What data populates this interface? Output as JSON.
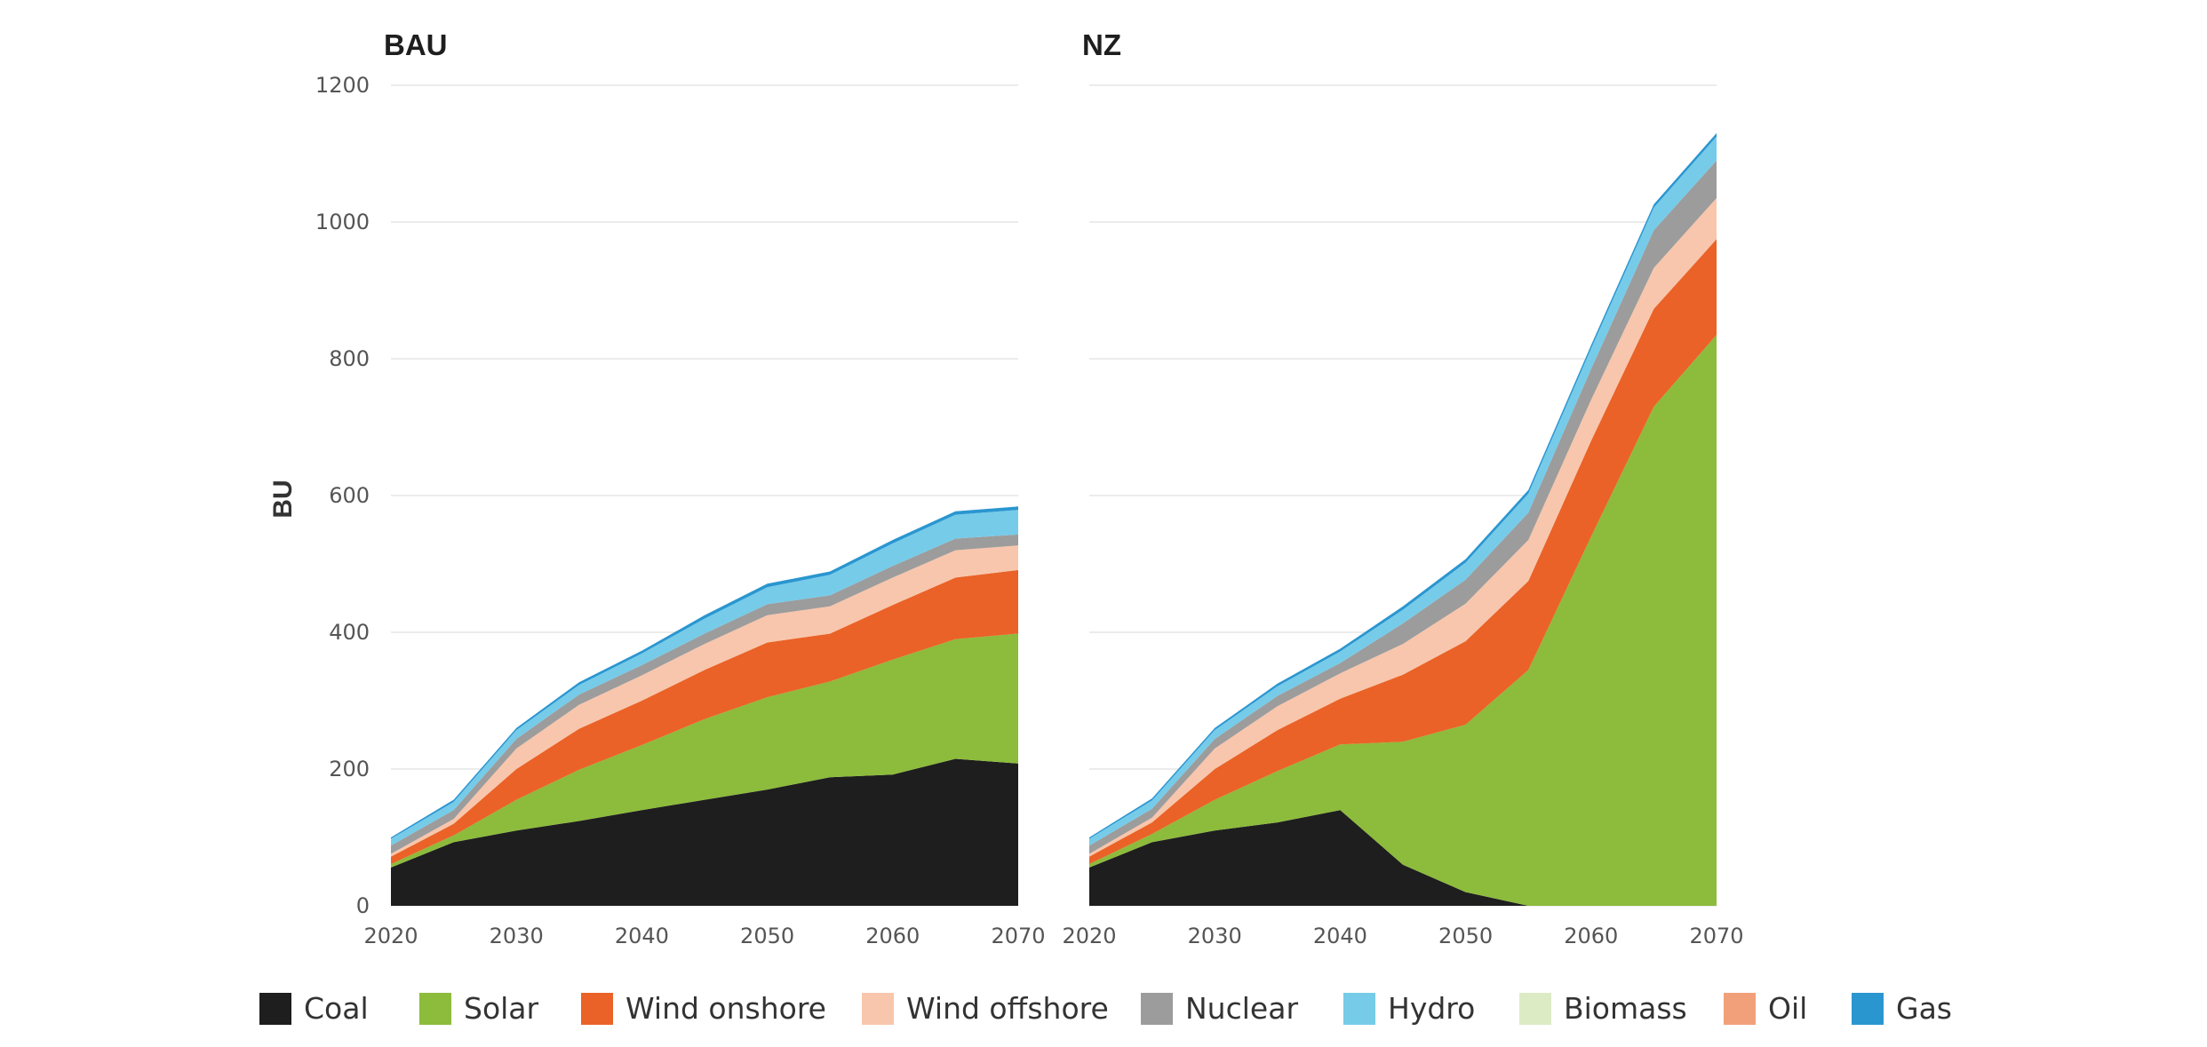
{
  "chart_data": {
    "type": "area",
    "stacked": true,
    "ylabel": "BU",
    "ylim": [
      0,
      1200
    ],
    "yticks": [
      0,
      200,
      400,
      600,
      800,
      1000,
      1200
    ],
    "xlim": [
      2020,
      2070
    ],
    "xticks": [
      2020,
      2030,
      2040,
      2050,
      2060,
      2070
    ],
    "grid": true,
    "legend_position": "bottom",
    "x": [
      2020,
      2025,
      2030,
      2035,
      2040,
      2045,
      2050,
      2055,
      2060,
      2065,
      2070
    ],
    "colors": {
      "Coal": "#1e1e1e",
      "Solar": "#8dbb3c",
      "Wind onshore": "#ea6227",
      "Wind offshore": "#f8c6ac",
      "Nuclear": "#9c9c9c",
      "Hydro": "#76cbe9",
      "Biomass": "#dcebc4",
      "Oil": "#f2a07a",
      "Gas": "#2a96d0"
    },
    "legend": [
      "Coal",
      "Solar",
      "Wind onshore",
      "Wind offshore",
      "Nuclear",
      "Hydro",
      "Biomass",
      "Oil",
      "Gas"
    ],
    "panels": [
      {
        "title": "BAU",
        "series": [
          {
            "name": "Coal",
            "values": [
              56,
              93,
              110,
              124,
              140,
              155,
              170,
              188,
              192,
              215,
              208
            ]
          },
          {
            "name": "Solar",
            "values": [
              5,
              10,
              45,
              75,
              95,
              118,
              135,
              140,
              168,
              175,
              190
            ]
          },
          {
            "name": "Wind onshore",
            "values": [
              11,
              17,
              45,
              60,
              65,
              72,
              80,
              70,
              80,
              90,
              93
            ]
          },
          {
            "name": "Wind offshore",
            "values": [
              4,
              7,
              30,
              35,
              37,
              38,
              40,
              40,
              40,
              40,
              36
            ]
          },
          {
            "name": "Nuclear",
            "values": [
              12,
              13,
              14,
              15,
              15,
              15,
              16,
              16,
              17,
              17,
              16
            ]
          },
          {
            "name": "Hydro",
            "values": [
              10,
              12,
              13,
              14,
              17,
              22,
              25,
              30,
              33,
              35,
              36
            ]
          },
          {
            "name": "Biomass",
            "values": [
              0,
              0,
              0,
              0,
              0,
              0,
              0,
              0,
              0,
              0,
              0
            ]
          },
          {
            "name": "Oil",
            "values": [
              0,
              0,
              0,
              0,
              0,
              0,
              0,
              0,
              0,
              0,
              0
            ]
          },
          {
            "name": "Gas",
            "values": [
              2,
              3,
              3,
              4,
              4,
              5,
              5,
              5,
              5,
              5,
              5
            ]
          }
        ]
      },
      {
        "title": "NZ",
        "series": [
          {
            "name": "Coal",
            "values": [
              56,
              93,
              110,
              122,
              140,
              60,
              20,
              0,
              0,
              0,
              0
            ]
          },
          {
            "name": "Solar",
            "values": [
              5,
              12,
              45,
              75,
              96,
              180,
              245,
              345,
              540,
              730,
              835
            ]
          },
          {
            "name": "Wind onshore",
            "values": [
              11,
              17,
              45,
              60,
              67,
              98,
              122,
              130,
              140,
              143,
              140
            ]
          },
          {
            "name": "Wind offshore",
            "values": [
              4,
              7,
              30,
              35,
              37,
              45,
              55,
              60,
              60,
              60,
              60
            ]
          },
          {
            "name": "Nuclear",
            "values": [
              12,
              13,
              14,
              15,
              15,
              30,
              35,
              40,
              45,
              55,
              55
            ]
          },
          {
            "name": "Hydro",
            "values": [
              10,
              12,
              13,
              14,
              17,
              20,
              25,
              28,
              30,
              33,
              35
            ]
          },
          {
            "name": "Biomass",
            "values": [
              0,
              0,
              0,
              0,
              0,
              0,
              0,
              0,
              0,
              0,
              0
            ]
          },
          {
            "name": "Oil",
            "values": [
              0,
              0,
              0,
              0,
              0,
              0,
              0,
              0,
              0,
              0,
              0
            ]
          },
          {
            "name": "Gas",
            "values": [
              2,
              3,
              3,
              4,
              4,
              5,
              5,
              5,
              5,
              5,
              5
            ]
          }
        ]
      }
    ]
  }
}
